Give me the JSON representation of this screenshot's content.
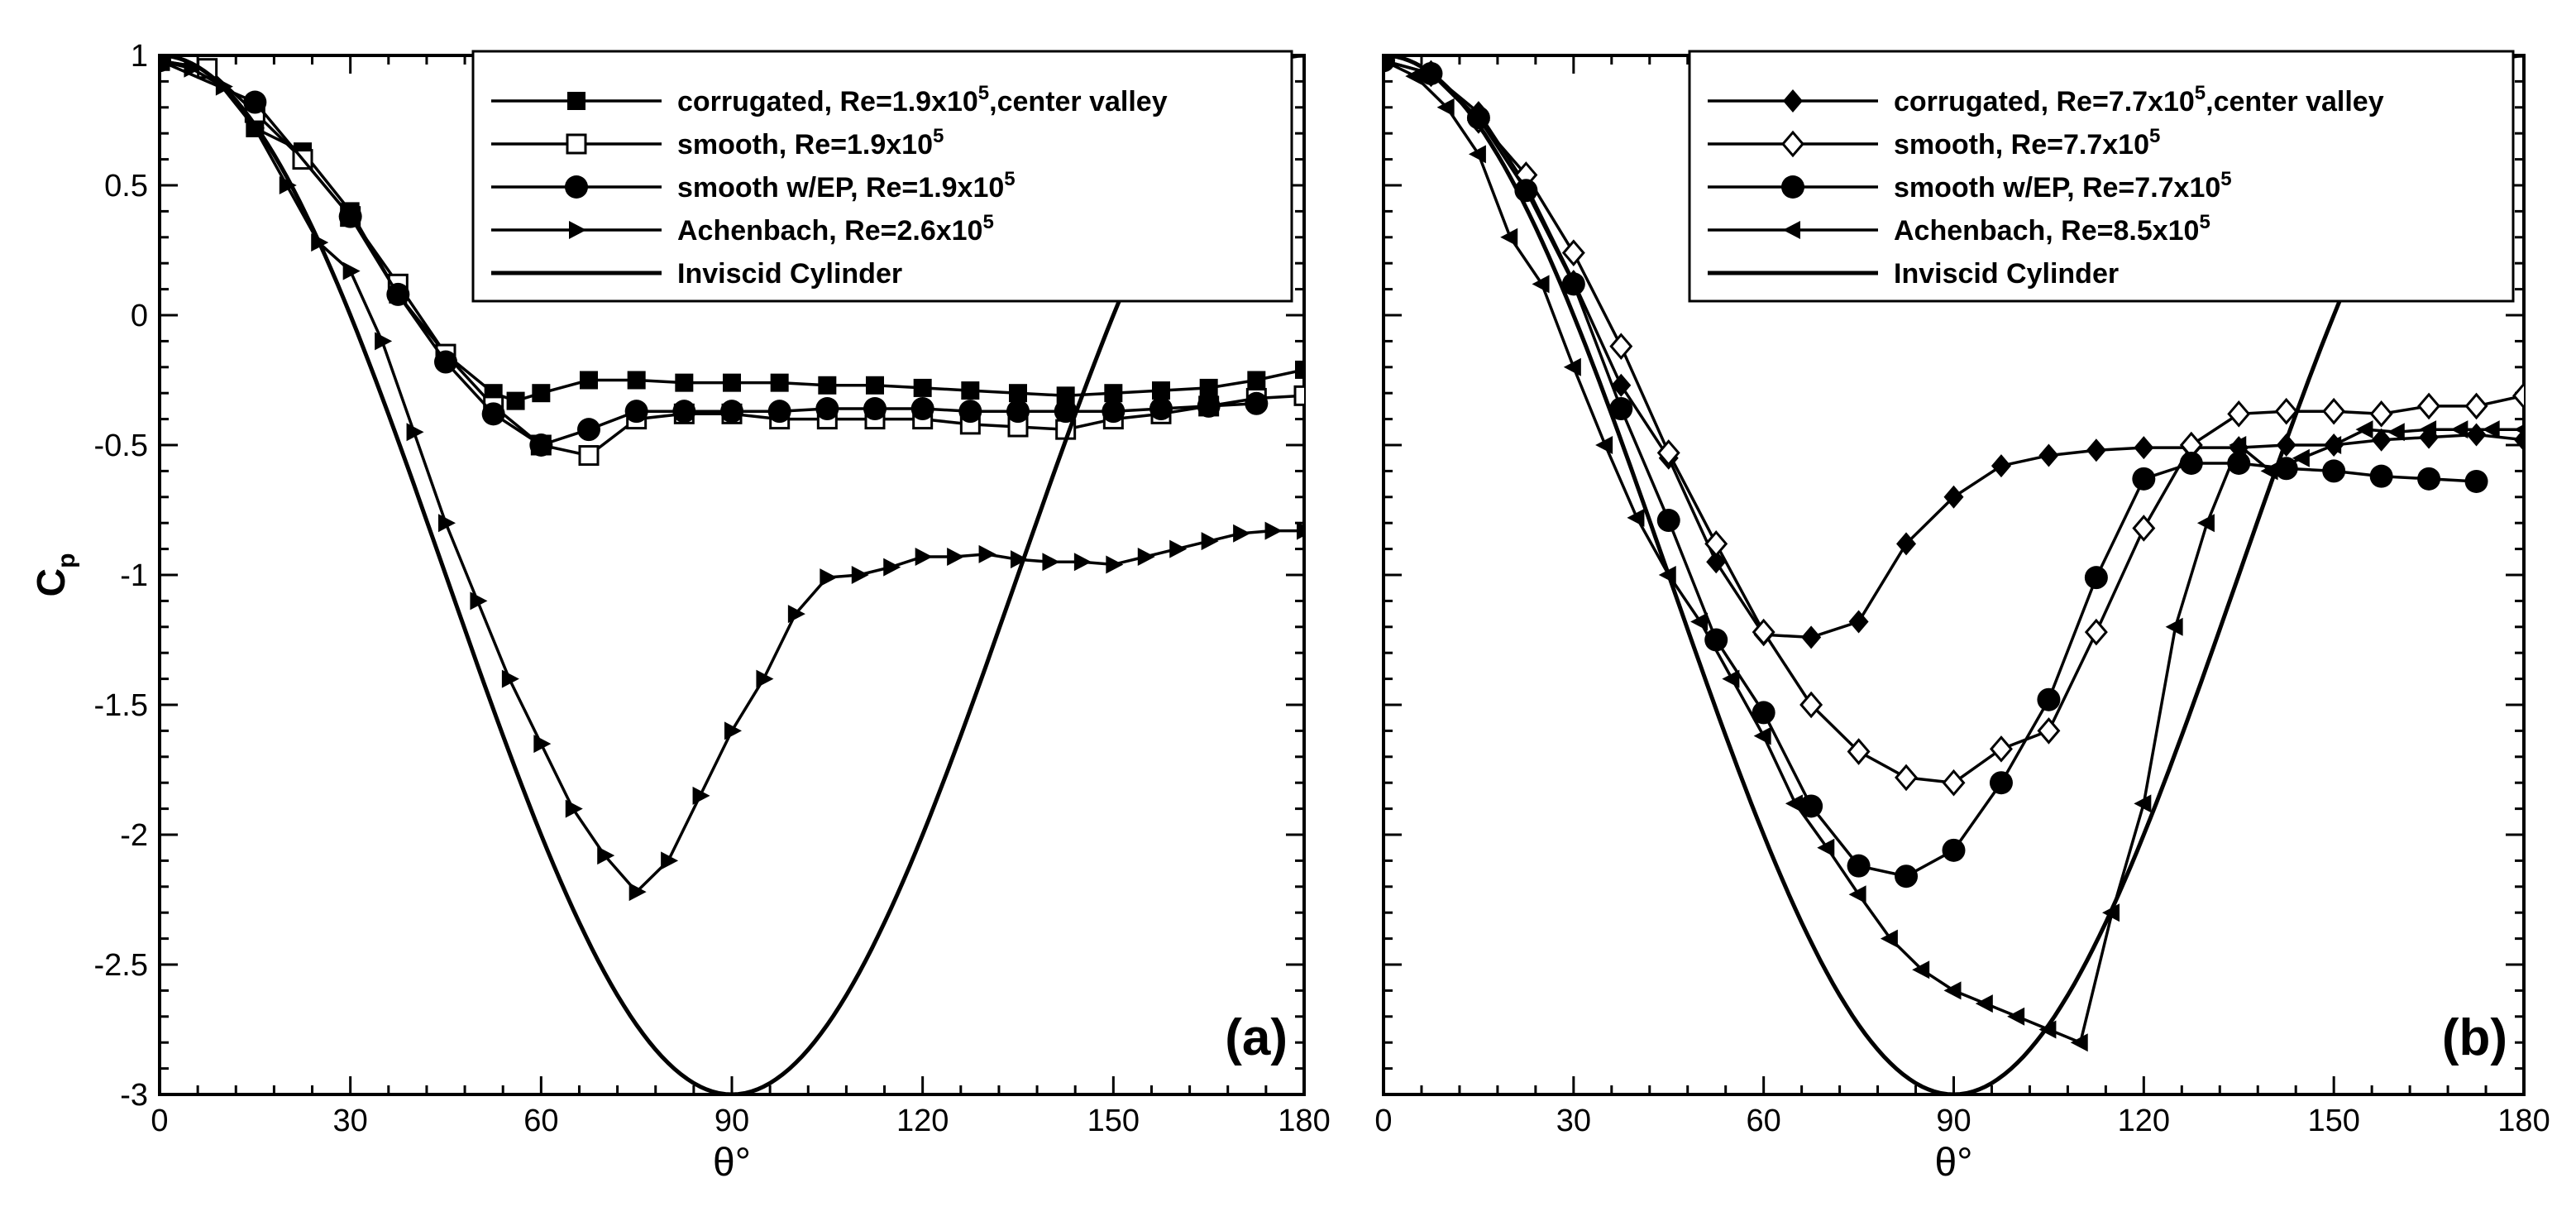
{
  "chart_data": [
    {
      "type": "line",
      "panel_label": "(a)",
      "xlabel": "θ°",
      "ylabel": "C",
      "ylabel_sub": "p",
      "xlim": [
        0,
        180
      ],
      "ylim": [
        -3,
        1
      ],
      "xticks": [
        "0",
        "30",
        "60",
        "90",
        "120",
        "150",
        "180"
      ],
      "yticks": [
        "1",
        "0.5",
        "0",
        "-0.5",
        "-1",
        "-1.5",
        "-2",
        "-2.5",
        "-3"
      ],
      "legend_position": "top-right",
      "series": [
        {
          "name": "corrugated, Re=1.9x10",
          "name_sup": "5",
          "name_suffix": ",center valley",
          "marker": "square-filled",
          "x": [
            0,
            7.5,
            15,
            22.5,
            30,
            37.5,
            45,
            52.5,
            56,
            60,
            67.5,
            75,
            82.5,
            90,
            97.5,
            105,
            112.5,
            120,
            127.5,
            135,
            142.5,
            150,
            157.5,
            165,
            172.5,
            180
          ],
          "y": [
            0.98,
            0.95,
            0.72,
            0.63,
            0.4,
            0.08,
            -0.15,
            -0.3,
            -0.33,
            -0.3,
            -0.25,
            -0.25,
            -0.26,
            -0.26,
            -0.26,
            -0.27,
            -0.27,
            -0.28,
            -0.29,
            -0.3,
            -0.31,
            -0.3,
            -0.29,
            -0.28,
            -0.25,
            -0.21
          ]
        },
        {
          "name": "smooth, Re=1.9x10",
          "name_sup": "5",
          "name_suffix": "",
          "marker": "square-open",
          "x": [
            0,
            7.5,
            15,
            22.5,
            30,
            37.5,
            45,
            52.5,
            60,
            67.5,
            75,
            82.5,
            90,
            97.5,
            105,
            112.5,
            120,
            127.5,
            135,
            142.5,
            150,
            157.5,
            165,
            172.5,
            180
          ],
          "y": [
            0.98,
            0.95,
            0.78,
            0.6,
            0.38,
            0.12,
            -0.15,
            -0.35,
            -0.5,
            -0.54,
            -0.4,
            -0.38,
            -0.38,
            -0.4,
            -0.4,
            -0.4,
            -0.4,
            -0.42,
            -0.43,
            -0.44,
            -0.4,
            -0.38,
            -0.35,
            -0.32,
            -0.31
          ]
        },
        {
          "name": "smooth w/EP, Re=1.9x10",
          "name_sup": "5",
          "name_suffix": "",
          "marker": "circle-filled",
          "x": [
            0,
            15,
            30,
            37.5,
            45,
            52.5,
            60,
            67.5,
            75,
            82.5,
            90,
            97.5,
            105,
            112.5,
            120,
            127.5,
            135,
            142.5,
            150,
            157.5,
            165,
            172.5
          ],
          "y": [
            0.98,
            0.82,
            0.38,
            0.08,
            -0.18,
            -0.38,
            -0.5,
            -0.44,
            -0.37,
            -0.37,
            -0.37,
            -0.37,
            -0.36,
            -0.36,
            -0.36,
            -0.37,
            -0.37,
            -0.37,
            -0.37,
            -0.36,
            -0.35,
            -0.34
          ]
        },
        {
          "name": "Achenbach, Re=2.6x10",
          "name_sup": "5",
          "name_suffix": "",
          "marker": "triangle-right",
          "x": [
            0,
            5,
            10,
            15,
            20,
            25,
            30,
            35,
            40,
            45,
            50,
            55,
            60,
            65,
            70,
            75,
            80,
            85,
            90,
            95,
            100,
            105,
            110,
            115,
            120,
            125,
            130,
            135,
            140,
            145,
            150,
            155,
            160,
            165,
            170,
            175,
            180
          ],
          "y": [
            0.98,
            0.95,
            0.88,
            0.72,
            0.5,
            0.28,
            0.17,
            -0.1,
            -0.45,
            -0.8,
            -1.1,
            -1.4,
            -1.65,
            -1.9,
            -2.08,
            -2.22,
            -2.1,
            -1.85,
            -1.6,
            -1.4,
            -1.15,
            -1.01,
            -1.0,
            -0.97,
            -0.93,
            -0.93,
            -0.92,
            -0.94,
            -0.95,
            -0.95,
            -0.96,
            -0.93,
            -0.9,
            -0.87,
            -0.84,
            -0.83,
            -0.83
          ]
        },
        {
          "name": "Inviscid Cylinder",
          "name_sup": "",
          "name_suffix": "",
          "marker": "none",
          "formula": "1 - 4 sin^2(theta)"
        }
      ]
    },
    {
      "type": "line",
      "panel_label": "(b)",
      "xlabel": "θ°",
      "xlim": [
        0,
        180
      ],
      "ylim": [
        -3,
        1
      ],
      "xticks": [
        "0",
        "30",
        "60",
        "90",
        "120",
        "150",
        "180"
      ],
      "legend_position": "top-right",
      "series": [
        {
          "name": "corrugated, Re=7.7x10",
          "name_sup": "5",
          "name_suffix": ",center valley",
          "marker": "diamond-filled",
          "x": [
            0,
            7.5,
            15,
            22.5,
            30,
            37.5,
            45,
            52.5,
            60,
            67.5,
            75,
            82.5,
            90,
            97.5,
            105,
            112.5,
            120,
            127.5,
            135,
            142.5,
            150,
            157.5,
            165,
            172.5,
            180
          ],
          "y": [
            0.98,
            0.93,
            0.78,
            0.5,
            0.13,
            -0.27,
            -0.55,
            -0.95,
            -1.23,
            -1.24,
            -1.18,
            -0.88,
            -0.7,
            -0.58,
            -0.54,
            -0.52,
            -0.51,
            -0.51,
            -0.51,
            -0.5,
            -0.5,
            -0.48,
            -0.47,
            -0.46,
            -0.48
          ]
        },
        {
          "name": "smooth, Re=7.7x10",
          "name_sup": "5",
          "name_suffix": "",
          "marker": "diamond-open",
          "x": [
            0,
            7.5,
            15,
            22.5,
            30,
            37.5,
            45,
            52.5,
            60,
            67.5,
            75,
            82.5,
            90,
            97.5,
            105,
            112.5,
            120,
            127.5,
            135,
            142.5,
            150,
            157.5,
            165,
            172.5,
            180
          ],
          "y": [
            0.98,
            0.93,
            0.75,
            0.54,
            0.24,
            -0.12,
            -0.53,
            -0.88,
            -1.22,
            -1.5,
            -1.68,
            -1.78,
            -1.8,
            -1.67,
            -1.6,
            -1.22,
            -0.82,
            -0.5,
            -0.38,
            -0.37,
            -0.37,
            -0.38,
            -0.35,
            -0.35,
            -0.31
          ]
        },
        {
          "name": "smooth w/EP, Re=7.7x10",
          "name_sup": "5",
          "name_suffix": "",
          "marker": "circle-filled",
          "x": [
            0,
            7.5,
            15,
            22.5,
            30,
            37.5,
            45,
            52.5,
            60,
            67.5,
            75,
            82.5,
            90,
            97.5,
            105,
            112.5,
            120,
            127.5,
            135,
            142.5,
            150,
            157.5,
            165,
            172.5
          ],
          "y": [
            0.98,
            0.93,
            0.76,
            0.48,
            0.12,
            -0.36,
            -0.79,
            -1.25,
            -1.53,
            -1.89,
            -2.12,
            -2.16,
            -2.06,
            -1.8,
            -1.48,
            -1.01,
            -0.63,
            -0.57,
            -0.57,
            -0.59,
            -0.6,
            -0.62,
            -0.63,
            -0.64
          ]
        },
        {
          "name": "Achenbach, Re=8.5x10",
          "name_sup": "5",
          "name_suffix": "",
          "marker": "triangle-left",
          "x": [
            0,
            5,
            10,
            15,
            20,
            25,
            30,
            35,
            40,
            45,
            50,
            55,
            60,
            65,
            70,
            75,
            80,
            85,
            90,
            95,
            100,
            105,
            110,
            115,
            120,
            125,
            130,
            135,
            140,
            145,
            150,
            155,
            160,
            165,
            170,
            175,
            180
          ],
          "y": [
            0.98,
            0.92,
            0.8,
            0.62,
            0.3,
            0.12,
            -0.2,
            -0.5,
            -0.78,
            -1.0,
            -1.18,
            -1.4,
            -1.62,
            -1.88,
            -2.05,
            -2.23,
            -2.4,
            -2.52,
            -2.6,
            -2.65,
            -2.7,
            -2.75,
            -2.8,
            -2.3,
            -1.88,
            -1.2,
            -0.8,
            -0.5,
            -0.6,
            -0.55,
            -0.5,
            -0.44,
            -0.45,
            -0.44,
            -0.44,
            -0.44,
            -0.44
          ]
        },
        {
          "name": "Inviscid Cylinder",
          "name_sup": "",
          "name_suffix": "",
          "marker": "none",
          "formula": "1 - 4 sin^2(theta)"
        }
      ]
    }
  ]
}
